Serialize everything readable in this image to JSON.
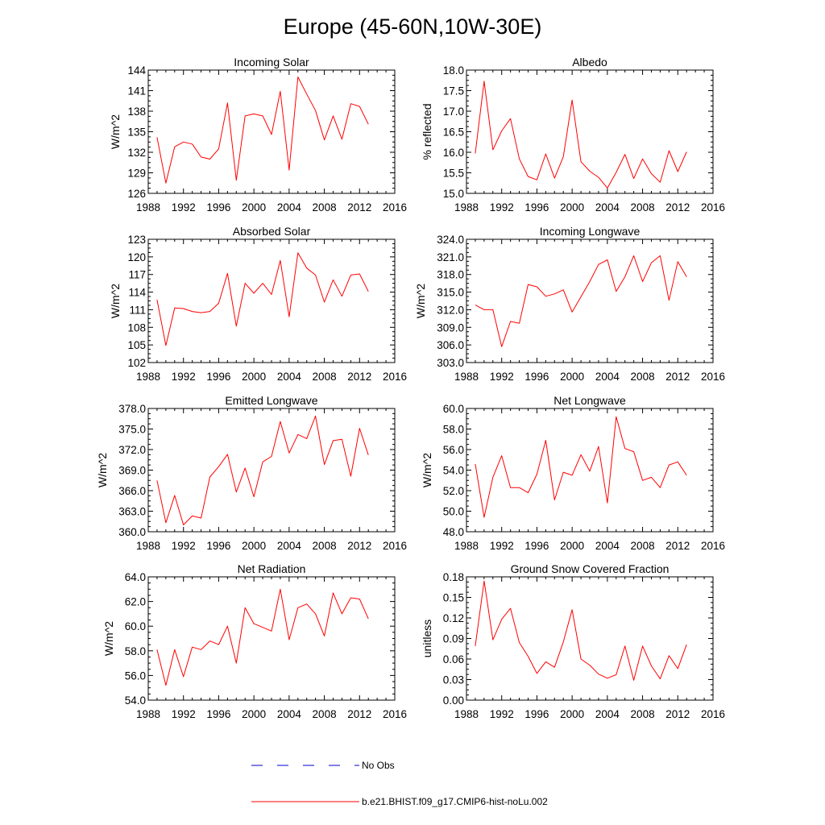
{
  "figure": {
    "title": "Europe (45-60N,10W-30E)"
  },
  "legend": {
    "items": [
      {
        "label": "No Obs",
        "color": "#0000cc",
        "style": "dashed"
      },
      {
        "label": "b.e21.BHIST.f09_g17.CMIP6-hist-noLu.002",
        "color": "#ff0000",
        "style": "solid"
      }
    ]
  },
  "chart_data": [
    {
      "type": "line",
      "title": "Incoming Solar",
      "ylabel": "W/m^2",
      "xlim": [
        1988,
        2016
      ],
      "ylim": [
        126,
        144
      ],
      "xticks": [
        1988,
        1992,
        1996,
        2000,
        2004,
        2008,
        2012,
        2016
      ],
      "yticks": [
        "126",
        "129",
        "132",
        "135",
        "138",
        "141",
        "144"
      ],
      "x": [
        1989,
        1990,
        1991,
        1992,
        1993,
        1994,
        1995,
        1996,
        1997,
        1998,
        1999,
        2000,
        2001,
        2002,
        2003,
        2004,
        2005,
        2006,
        2007,
        2008,
        2009,
        2010,
        2011,
        2012,
        2013
      ],
      "series": [
        {
          "color": "#ff0000",
          "values": [
            134.2,
            127.5,
            132.8,
            133.5,
            133.2,
            131.3,
            131.0,
            132.5,
            139.2,
            127.9,
            137.3,
            137.6,
            137.3,
            134.6,
            140.9,
            129.4,
            143.0,
            140.5,
            138.1,
            133.8,
            137.3,
            133.9,
            139.1,
            138.7,
            136.1
          ]
        }
      ]
    },
    {
      "type": "line",
      "title": "Albedo",
      "ylabel": "% reflected",
      "xlim": [
        1988,
        2016
      ],
      "ylim": [
        15.0,
        18.0
      ],
      "xticks": [
        1988,
        1992,
        1996,
        2000,
        2004,
        2008,
        2012,
        2016
      ],
      "yticks": [
        "15.0",
        "15.5",
        "16.0",
        "16.5",
        "17.0",
        "17.5",
        "18.0"
      ],
      "x": [
        1989,
        1990,
        1991,
        1992,
        1993,
        1994,
        1995,
        1996,
        1997,
        1998,
        1999,
        2000,
        2001,
        2002,
        2003,
        2004,
        2005,
        2006,
        2007,
        2008,
        2009,
        2010,
        2011,
        2012,
        2013
      ],
      "series": [
        {
          "color": "#ff0000",
          "values": [
            15.97,
            17.73,
            16.06,
            16.52,
            16.82,
            15.84,
            15.41,
            15.33,
            15.96,
            15.37,
            15.89,
            17.27,
            15.77,
            15.54,
            15.39,
            15.13,
            15.51,
            15.95,
            15.36,
            15.84,
            15.48,
            15.27,
            16.04,
            15.53,
            16.01
          ]
        }
      ]
    },
    {
      "type": "line",
      "title": "Absorbed Solar",
      "ylabel": "W/m^2",
      "xlim": [
        1988,
        2016
      ],
      "ylim": [
        102,
        123
      ],
      "xticks": [
        1988,
        1992,
        1996,
        2000,
        2004,
        2008,
        2012,
        2016
      ],
      "yticks": [
        "102",
        "105",
        "108",
        "111",
        "114",
        "117",
        "120",
        "123"
      ],
      "x": [
        1989,
        1990,
        1991,
        1992,
        1993,
        1994,
        1995,
        1996,
        1997,
        1998,
        1999,
        2000,
        2001,
        2002,
        2003,
        2004,
        2005,
        2006,
        2007,
        2008,
        2009,
        2010,
        2011,
        2012,
        2013
      ],
      "series": [
        {
          "color": "#ff0000",
          "values": [
            112.7,
            104.9,
            111.3,
            111.2,
            110.7,
            110.5,
            110.7,
            112.1,
            117.2,
            108.2,
            115.5,
            113.8,
            115.5,
            113.6,
            119.4,
            109.8,
            120.7,
            118.1,
            116.9,
            112.3,
            116.1,
            113.3,
            116.9,
            117.1,
            114.1
          ]
        }
      ]
    },
    {
      "type": "line",
      "title": "Incoming Longwave",
      "ylabel": "W/m^2",
      "xlim": [
        1988,
        2016
      ],
      "ylim": [
        303.0,
        324.0
      ],
      "xticks": [
        1988,
        1992,
        1996,
        2000,
        2004,
        2008,
        2012,
        2016
      ],
      "yticks": [
        "303.0",
        "306.0",
        "309.0",
        "312.0",
        "315.0",
        "318.0",
        "321.0",
        "324.0"
      ],
      "x": [
        1989,
        1990,
        1991,
        1992,
        1993,
        1994,
        1995,
        1996,
        1997,
        1998,
        1999,
        2000,
        2001,
        2002,
        2003,
        2004,
        2005,
        2006,
        2007,
        2008,
        2009,
        2010,
        2011,
        2012,
        2013
      ],
      "series": [
        {
          "color": "#ff0000",
          "values": [
            312.8,
            312.0,
            312.0,
            305.7,
            310.0,
            309.7,
            316.3,
            315.9,
            314.3,
            314.7,
            315.4,
            311.6,
            314.2,
            316.8,
            319.7,
            320.5,
            315.1,
            317.6,
            321.2,
            316.8,
            320.0,
            321.2,
            313.6,
            320.2,
            317.6
          ]
        }
      ]
    },
    {
      "type": "line",
      "title": "Emitted Longwave",
      "ylabel": "W/m^2",
      "xlim": [
        1988,
        2016
      ],
      "ylim": [
        360.0,
        378.0
      ],
      "xticks": [
        1988,
        1992,
        1996,
        2000,
        2004,
        2008,
        2012,
        2016
      ],
      "yticks": [
        "360.0",
        "363.0",
        "366.0",
        "369.0",
        "372.0",
        "375.0",
        "378.0"
      ],
      "x": [
        1989,
        1990,
        1991,
        1992,
        1993,
        1994,
        1995,
        1996,
        1997,
        1998,
        1999,
        2000,
        2001,
        2002,
        2003,
        2004,
        2005,
        2006,
        2007,
        2008,
        2009,
        2010,
        2011,
        2012,
        2013
      ],
      "series": [
        {
          "color": "#ff0000",
          "values": [
            367.5,
            361.3,
            365.3,
            361.0,
            362.3,
            362.0,
            368.0,
            369.5,
            371.3,
            365.8,
            369.3,
            365.1,
            370.2,
            371.0,
            376.1,
            371.5,
            374.2,
            373.6,
            376.9,
            369.8,
            373.3,
            373.5,
            368.1,
            375.1,
            371.2
          ]
        }
      ]
    },
    {
      "type": "line",
      "title": "Net Longwave",
      "ylabel": "W/m^2",
      "xlim": [
        1988,
        2016
      ],
      "ylim": [
        48.0,
        60.0
      ],
      "xticks": [
        1988,
        1992,
        1996,
        2000,
        2004,
        2008,
        2012,
        2016
      ],
      "yticks": [
        "48.0",
        "50.0",
        "52.0",
        "54.0",
        "56.0",
        "58.0",
        "60.0"
      ],
      "x": [
        1989,
        1990,
        1991,
        1992,
        1993,
        1994,
        1995,
        1996,
        1997,
        1998,
        1999,
        2000,
        2001,
        2002,
        2003,
        2004,
        2005,
        2006,
        2007,
        2008,
        2009,
        2010,
        2011,
        2012,
        2013
      ],
      "series": [
        {
          "color": "#ff0000",
          "values": [
            54.6,
            49.4,
            53.3,
            55.4,
            52.3,
            52.3,
            51.8,
            53.6,
            56.9,
            51.1,
            53.8,
            53.5,
            55.5,
            53.9,
            56.3,
            50.8,
            59.2,
            56.1,
            55.8,
            53.0,
            53.3,
            52.3,
            54.5,
            54.8,
            53.5
          ]
        }
      ]
    },
    {
      "type": "line",
      "title": "Net Radiation",
      "ylabel": "W/m^2",
      "xlim": [
        1988,
        2016
      ],
      "ylim": [
        54.0,
        64.0
      ],
      "xticks": [
        1988,
        1992,
        1996,
        2000,
        2004,
        2008,
        2012,
        2016
      ],
      "yticks": [
        "54.0",
        "56.0",
        "58.0",
        "60.0",
        "62.0",
        "64.0"
      ],
      "x": [
        1989,
        1990,
        1991,
        1992,
        1993,
        1994,
        1995,
        1996,
        1997,
        1998,
        1999,
        2000,
        2001,
        2002,
        2003,
        2004,
        2005,
        2006,
        2007,
        2008,
        2009,
        2010,
        2011,
        2012,
        2013
      ],
      "series": [
        {
          "color": "#ff0000",
          "values": [
            58.1,
            55.2,
            58.1,
            55.9,
            58.3,
            58.1,
            58.8,
            58.5,
            60.0,
            57.0,
            61.5,
            60.2,
            59.9,
            59.6,
            63.0,
            58.9,
            61.5,
            61.8,
            61.0,
            59.2,
            62.7,
            61.0,
            62.3,
            62.2,
            60.6
          ]
        }
      ]
    },
    {
      "type": "line",
      "title": "Ground Snow Covered Fraction",
      "ylabel": "unitless",
      "xlim": [
        1988,
        2016
      ],
      "ylim": [
        0.0,
        0.18
      ],
      "xticks": [
        1988,
        1992,
        1996,
        2000,
        2004,
        2008,
        2012,
        2016
      ],
      "yticks": [
        "0.00",
        "0.03",
        "0.06",
        "0.09",
        "0.12",
        "0.15",
        "0.18"
      ],
      "x": [
        1989,
        1990,
        1991,
        1992,
        1993,
        1994,
        1995,
        1996,
        1997,
        1998,
        1999,
        2000,
        2001,
        2002,
        2003,
        2004,
        2005,
        2006,
        2007,
        2008,
        2009,
        2010,
        2011,
        2012,
        2013
      ],
      "series": [
        {
          "color": "#ff0000",
          "values": [
            0.079,
            0.174,
            0.088,
            0.118,
            0.134,
            0.084,
            0.064,
            0.039,
            0.056,
            0.048,
            0.085,
            0.132,
            0.06,
            0.051,
            0.038,
            0.032,
            0.037,
            0.079,
            0.029,
            0.079,
            0.05,
            0.031,
            0.065,
            0.046,
            0.081
          ]
        }
      ]
    }
  ]
}
